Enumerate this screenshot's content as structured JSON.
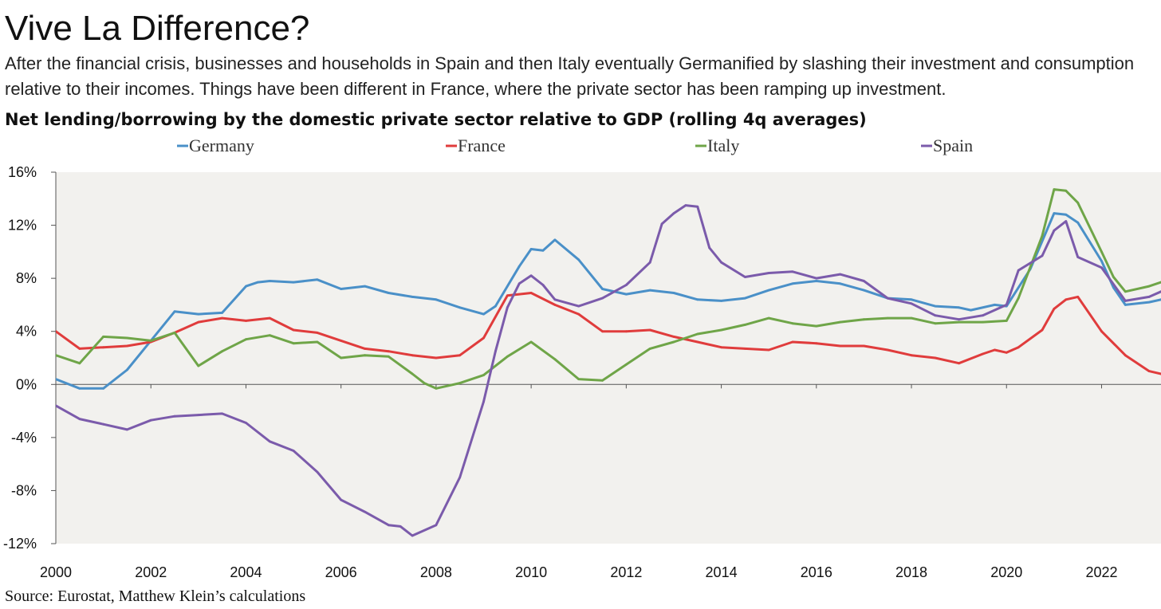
{
  "header": {
    "title": "Vive La Difference?",
    "subtitle": "After the financial crisis, businesses and households in Spain and then Italy eventually Germanified by slashing their investment and consumption relative to their incomes. Things have been different in France, where the private sector has been ramping up investment."
  },
  "footer": {
    "source": "Source: Eurostat, Matthew Klein’s calculations"
  },
  "colors": {
    "Germany": "#4a90c8",
    "France": "#e03c3c",
    "Italy": "#6fa548",
    "Spain": "#7b5bab",
    "plot_background": "#f2f1ee",
    "axis": "#555555"
  },
  "chart_data": {
    "type": "line",
    "title": "Net lending/borrowing by the domestic private sector relative to GDP (rolling 4q averages)",
    "xlabel": "",
    "ylabel": "",
    "ylim": [
      -12,
      16
    ],
    "xlim": [
      2000,
      2023.25
    ],
    "y_ticks": [
      16,
      12,
      8,
      4,
      0,
      -4,
      -8,
      -12
    ],
    "y_tick_labels": [
      "16%",
      "12%",
      "8%",
      "4%",
      "0%",
      "-4%",
      "-8%",
      "-12%"
    ],
    "x_ticks": [
      2000,
      2002,
      2004,
      2006,
      2008,
      2010,
      2012,
      2014,
      2016,
      2018,
      2020,
      2022
    ],
    "x_tick_labels": [
      "2000",
      "2002",
      "2004",
      "2006",
      "2008",
      "2010",
      "2012",
      "2014",
      "2016",
      "2018",
      "2020",
      "2022"
    ],
    "grid": false,
    "legend_position": "top",
    "series": [
      {
        "name": "Germany",
        "x": [
          2000.0,
          2000.5,
          2001.0,
          2001.5,
          2002.0,
          2002.5,
          2003.0,
          2003.5,
          2004.0,
          2004.25,
          2004.5,
          2005.0,
          2005.5,
          2006.0,
          2006.5,
          2007.0,
          2007.5,
          2008.0,
          2008.5,
          2009.0,
          2009.25,
          2009.75,
          2010.0,
          2010.25,
          2010.5,
          2011.0,
          2011.5,
          2012.0,
          2012.5,
          2013.0,
          2013.5,
          2014.0,
          2014.5,
          2015.0,
          2015.5,
          2016.0,
          2016.5,
          2017.0,
          2017.5,
          2018.0,
          2018.5,
          2019.0,
          2019.25,
          2019.75,
          2020.0,
          2020.5,
          2021.0,
          2021.25,
          2021.5,
          2022.0,
          2022.25,
          2022.5,
          2023.0,
          2023.25
        ],
        "y": [
          0.4,
          -0.3,
          -0.3,
          1.1,
          3.3,
          5.5,
          5.3,
          5.4,
          7.4,
          7.7,
          7.8,
          7.7,
          7.9,
          7.2,
          7.4,
          6.9,
          6.6,
          6.4,
          5.8,
          5.3,
          5.9,
          8.9,
          10.2,
          10.1,
          10.9,
          9.4,
          7.2,
          6.8,
          7.1,
          6.9,
          6.4,
          6.3,
          6.5,
          7.1,
          7.6,
          7.8,
          7.6,
          7.1,
          6.5,
          6.4,
          5.9,
          5.8,
          5.6,
          6.0,
          5.9,
          8.7,
          12.9,
          12.8,
          12.2,
          9.3,
          7.3,
          6.0,
          6.2,
          6.4
        ]
      },
      {
        "name": "France",
        "x": [
          2000.0,
          2000.5,
          2001.0,
          2001.5,
          2002.0,
          2002.5,
          2003.0,
          2003.5,
          2004.0,
          2004.5,
          2005.0,
          2005.5,
          2006.0,
          2006.5,
          2007.0,
          2007.5,
          2008.0,
          2008.5,
          2009.0,
          2009.5,
          2010.0,
          2010.5,
          2011.0,
          2011.5,
          2012.0,
          2012.5,
          2013.0,
          2013.5,
          2014.0,
          2014.5,
          2015.0,
          2015.5,
          2016.0,
          2016.5,
          2017.0,
          2017.5,
          2018.0,
          2018.5,
          2019.0,
          2019.5,
          2019.75,
          2020.0,
          2020.25,
          2020.75,
          2021.0,
          2021.25,
          2021.5,
          2022.0,
          2022.5,
          2023.0,
          2023.25
        ],
        "y": [
          4.0,
          2.7,
          2.8,
          2.9,
          3.2,
          3.9,
          4.7,
          5.0,
          4.8,
          5.0,
          4.1,
          3.9,
          3.3,
          2.7,
          2.5,
          2.2,
          2.0,
          2.2,
          3.5,
          6.7,
          6.9,
          6.0,
          5.3,
          4.0,
          4.0,
          4.1,
          3.6,
          3.2,
          2.8,
          2.7,
          2.6,
          3.2,
          3.1,
          2.9,
          2.9,
          2.6,
          2.2,
          2.0,
          1.6,
          2.3,
          2.6,
          2.4,
          2.8,
          4.1,
          5.7,
          6.4,
          6.6,
          4.0,
          2.2,
          1.0,
          0.8
        ]
      },
      {
        "name": "Italy",
        "x": [
          2000.0,
          2000.5,
          2001.0,
          2001.5,
          2002.0,
          2002.5,
          2003.0,
          2003.5,
          2004.0,
          2004.5,
          2005.0,
          2005.5,
          2006.0,
          2006.5,
          2007.0,
          2007.5,
          2007.75,
          2008.0,
          2008.5,
          2009.0,
          2009.5,
          2010.0,
          2010.5,
          2011.0,
          2011.5,
          2012.0,
          2012.5,
          2013.0,
          2013.5,
          2014.0,
          2014.5,
          2015.0,
          2015.5,
          2016.0,
          2016.5,
          2017.0,
          2017.5,
          2018.0,
          2018.5,
          2019.0,
          2019.5,
          2020.0,
          2020.25,
          2020.75,
          2021.0,
          2021.25,
          2021.5,
          2022.0,
          2022.25,
          2022.5,
          2023.0,
          2023.25
        ],
        "y": [
          2.2,
          1.6,
          3.6,
          3.5,
          3.3,
          3.9,
          1.4,
          2.5,
          3.4,
          3.7,
          3.1,
          3.2,
          2.0,
          2.2,
          2.1,
          0.8,
          0.1,
          -0.3,
          0.1,
          0.7,
          2.1,
          3.2,
          1.9,
          0.4,
          0.3,
          1.5,
          2.7,
          3.2,
          3.8,
          4.1,
          4.5,
          5.0,
          4.6,
          4.4,
          4.7,
          4.9,
          5.0,
          5.0,
          4.6,
          4.7,
          4.7,
          4.8,
          6.5,
          11.2,
          14.7,
          14.6,
          13.7,
          10.0,
          8.1,
          7.0,
          7.4,
          7.7
        ]
      },
      {
        "name": "Spain",
        "x": [
          2000.0,
          2000.5,
          2001.0,
          2001.5,
          2002.0,
          2002.5,
          2003.0,
          2003.5,
          2004.0,
          2004.5,
          2005.0,
          2005.5,
          2006.0,
          2006.5,
          2007.0,
          2007.25,
          2007.5,
          2008.0,
          2008.5,
          2009.0,
          2009.25,
          2009.5,
          2009.75,
          2010.0,
          2010.25,
          2010.5,
          2011.0,
          2011.5,
          2012.0,
          2012.5,
          2012.75,
          2013.0,
          2013.25,
          2013.5,
          2013.75,
          2014.0,
          2014.5,
          2015.0,
          2015.5,
          2016.0,
          2016.5,
          2017.0,
          2017.5,
          2018.0,
          2018.5,
          2019.0,
          2019.5,
          2020.0,
          2020.25,
          2020.75,
          2021.0,
          2021.25,
          2021.5,
          2022.0,
          2022.5,
          2023.0,
          2023.25
        ],
        "y": [
          -1.6,
          -2.6,
          -3.0,
          -3.4,
          -2.7,
          -2.4,
          -2.3,
          -2.2,
          -2.9,
          -4.3,
          -5.0,
          -6.6,
          -8.7,
          -9.6,
          -10.6,
          -10.7,
          -11.4,
          -10.6,
          -7.0,
          -1.3,
          2.5,
          5.8,
          7.6,
          8.2,
          7.5,
          6.4,
          5.9,
          6.5,
          7.5,
          9.2,
          12.1,
          12.9,
          13.5,
          13.4,
          10.3,
          9.2,
          8.1,
          8.4,
          8.5,
          8.0,
          8.3,
          7.8,
          6.5,
          6.1,
          5.2,
          4.9,
          5.2,
          6.0,
          8.6,
          9.7,
          11.6,
          12.3,
          9.6,
          8.8,
          6.3,
          6.6,
          7.0
        ]
      }
    ]
  }
}
